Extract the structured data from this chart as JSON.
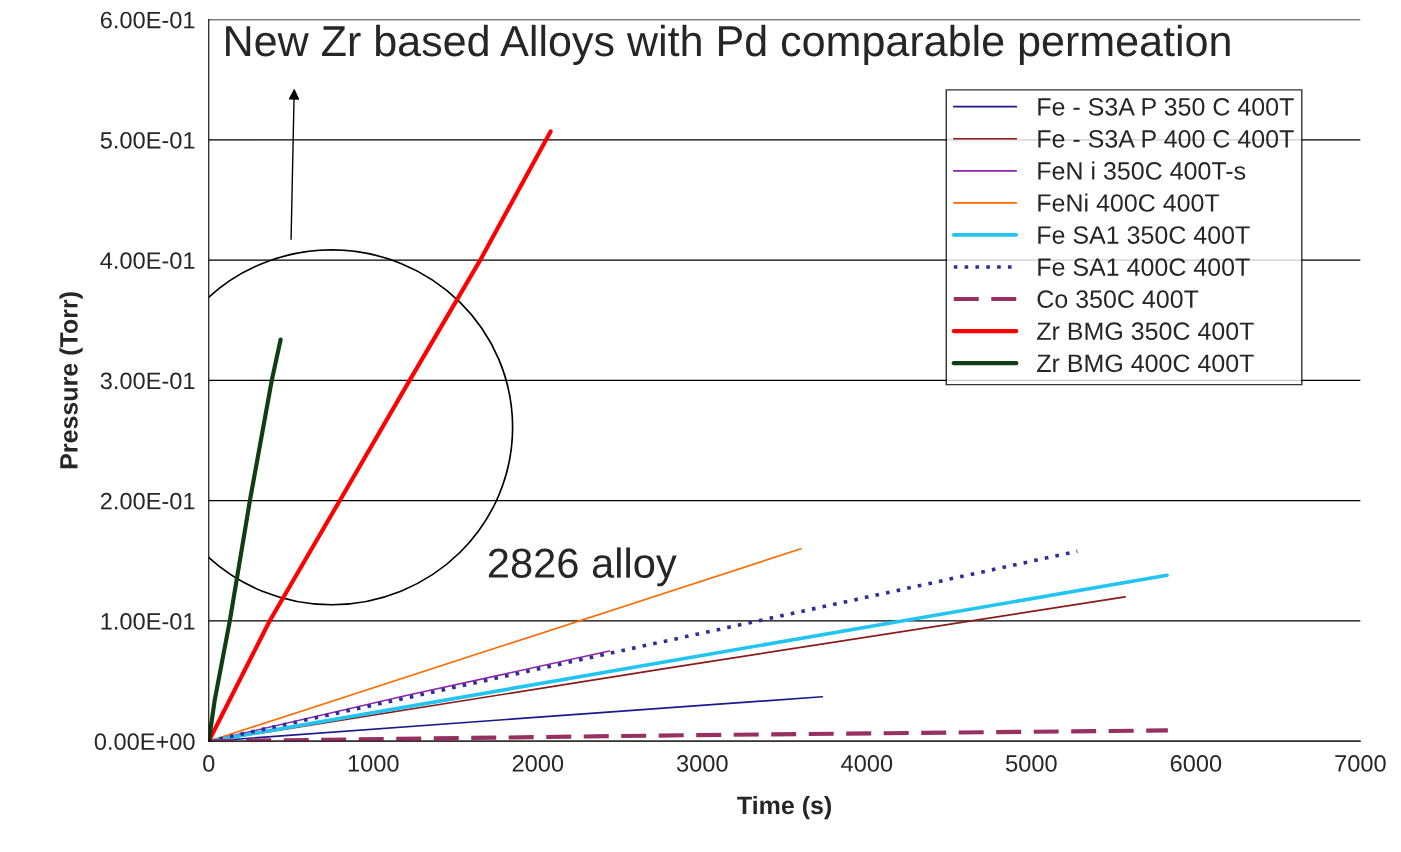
{
  "chart_data": {
    "type": "line",
    "title": "New Zr based Alloys with Pd comparable permeation",
    "xlabel": "Time (s)",
    "ylabel": "Pressure (Torr)",
    "annotations": [
      "2826 alloy"
    ],
    "xlim": [
      0,
      7000
    ],
    "xticks": [
      0,
      1000,
      2000,
      3000,
      4000,
      5000,
      6000,
      7000
    ],
    "ylim": [
      0,
      0.6
    ],
    "yticks": [
      {
        "value": 0,
        "label": "0.00E+00"
      },
      {
        "value": 0.1,
        "label": "1.00E-01"
      },
      {
        "value": 0.2,
        "label": "2.00E-01"
      },
      {
        "value": 0.3,
        "label": "3.00E-01"
      },
      {
        "value": 0.4,
        "label": "4.00E-01"
      },
      {
        "value": 0.5,
        "label": "5.00E-01"
      },
      {
        "value": 0.6,
        "label": "6.00E-01"
      }
    ],
    "grid": "y",
    "legend": "top right",
    "marker": "none",
    "series": [
      {
        "name": "Fe - S3A P 350 C 400T",
        "color": "#1a1a8c",
        "x": [
          0,
          1900,
          3730
        ],
        "values": [
          0,
          0.019,
          0.037
        ]
      },
      {
        "name": "Fe - S3A P 400 C 400T",
        "color": "#8b1a1a",
        "x": [
          0,
          2800,
          5570
        ],
        "values": [
          0,
          0.061,
          0.12
        ]
      },
      {
        "name": "FeN i 350C 400T-s",
        "color": "#8e24aa",
        "x": [
          0,
          1200,
          2435
        ],
        "values": [
          0,
          0.038,
          0.075
        ]
      },
      {
        "name": "FeNi 400C 400T",
        "color": "#ff6a00",
        "x": [
          0,
          1800,
          3600
        ],
        "values": [
          0,
          0.08,
          0.16
        ]
      },
      {
        "name": "Fe SA1 350C 400T",
        "color": "#22c4f0",
        "x": [
          0,
          2900,
          5825
        ],
        "values": [
          0,
          0.069,
          0.138
        ]
      },
      {
        "name": "Fe SA1 400C 400T",
        "color": "#2e2e9a",
        "line_style": "dotted",
        "x": [
          0,
          2600,
          5280
        ],
        "values": [
          0,
          0.078,
          0.158
        ]
      },
      {
        "name": "Co 350C 400T",
        "color": "#953060",
        "line_style": "dashed",
        "x": [
          0,
          2900,
          5830
        ],
        "values": [
          0,
          0.005,
          0.009
        ]
      },
      {
        "name": "Zr BMG 350C 400T",
        "color": "#ff0000",
        "x": [
          0,
          370,
          796,
          1221,
          1650,
          2078
        ],
        "values": [
          0,
          0.1,
          0.2,
          0.3,
          0.4,
          0.507
        ]
      },
      {
        "name": "Zr BMG 400C 400T",
        "color": "#0f3d14",
        "x": [
          0,
          36,
          128,
          250,
          383,
          437
        ],
        "values": [
          0,
          0.034,
          0.1,
          0.2,
          0.3,
          0.334
        ]
      }
    ]
  }
}
